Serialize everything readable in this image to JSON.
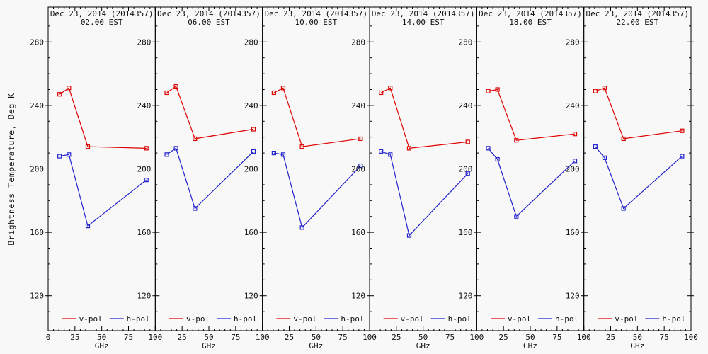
{
  "figure": {
    "background": "#f8f8f8",
    "frame_color": "#000000",
    "text_color": "#111111"
  },
  "chart_data": {
    "type": "line",
    "description": "Six-panel time series of microwave brightness temperature vs frequency, v-pol and h-pol",
    "ylabel": "Brightness Temperature, Deg K",
    "xlabel": "GHz",
    "xlim": [
      0,
      100
    ],
    "ylim": [
      98,
      302
    ],
    "x_major_ticks": [
      0,
      25,
      50,
      75,
      100
    ],
    "x_minor_step": 5,
    "y_major_ticks": [
      120,
      160,
      200,
      240,
      280
    ],
    "y_minor_step": 10,
    "grid": false,
    "legend_position": "bottom-inside-each-panel",
    "legend": [
      {
        "label": "v-pol",
        "color": "#dd0000"
      },
      {
        "label": "h-pol",
        "color": "#2222cc"
      }
    ],
    "x": [
      10.7,
      19.35,
      37.0,
      91.655
    ],
    "panels": [
      {
        "title": "Dec 23, 2014 (2014357)",
        "subtitle": "02.00 EST",
        "series": [
          {
            "name": "v-pol",
            "color": "#dd0000",
            "values": [
              247,
              251,
              214,
              213
            ]
          },
          {
            "name": "h-pol",
            "color": "#2222cc",
            "values": [
              208,
              209,
              164,
              193
            ]
          }
        ]
      },
      {
        "title": "Dec 23, 2014 (2014357)",
        "subtitle": "06.00 EST",
        "series": [
          {
            "name": "v-pol",
            "color": "#dd0000",
            "values": [
              248,
              252,
              219,
              225
            ]
          },
          {
            "name": "h-pol",
            "color": "#2222cc",
            "values": [
              209,
              213,
              175,
              211
            ]
          }
        ]
      },
      {
        "title": "Dec 23, 2014 (2014357)",
        "subtitle": "10.00 EST",
        "series": [
          {
            "name": "v-pol",
            "color": "#dd0000",
            "values": [
              248,
              251,
              214,
              219
            ]
          },
          {
            "name": "h-pol",
            "color": "#2222cc",
            "values": [
              210,
              209,
              163,
              202
            ]
          }
        ]
      },
      {
        "title": "Dec 23, 2014 (2014357)",
        "subtitle": "14.00 EST",
        "series": [
          {
            "name": "v-pol",
            "color": "#dd0000",
            "values": [
              248,
              251,
              213,
              217
            ]
          },
          {
            "name": "h-pol",
            "color": "#2222cc",
            "values": [
              211,
              209,
              158,
              197
            ]
          }
        ]
      },
      {
        "title": "Dec 23, 2014 (2014357)",
        "subtitle": "18.00 EST",
        "series": [
          {
            "name": "v-pol",
            "color": "#dd0000",
            "values": [
              249,
              250,
              218,
              222
            ]
          },
          {
            "name": "h-pol",
            "color": "#2222cc",
            "values": [
              213,
              206,
              170,
              205
            ]
          }
        ]
      },
      {
        "title": "Dec 23, 2014 (2014357)",
        "subtitle": "22.00 EST",
        "series": [
          {
            "name": "v-pol",
            "color": "#dd0000",
            "values": [
              249,
              251,
              219,
              224
            ]
          },
          {
            "name": "h-pol",
            "color": "#2222cc",
            "values": [
              214,
              207,
              175,
              208
            ]
          }
        ]
      }
    ]
  }
}
